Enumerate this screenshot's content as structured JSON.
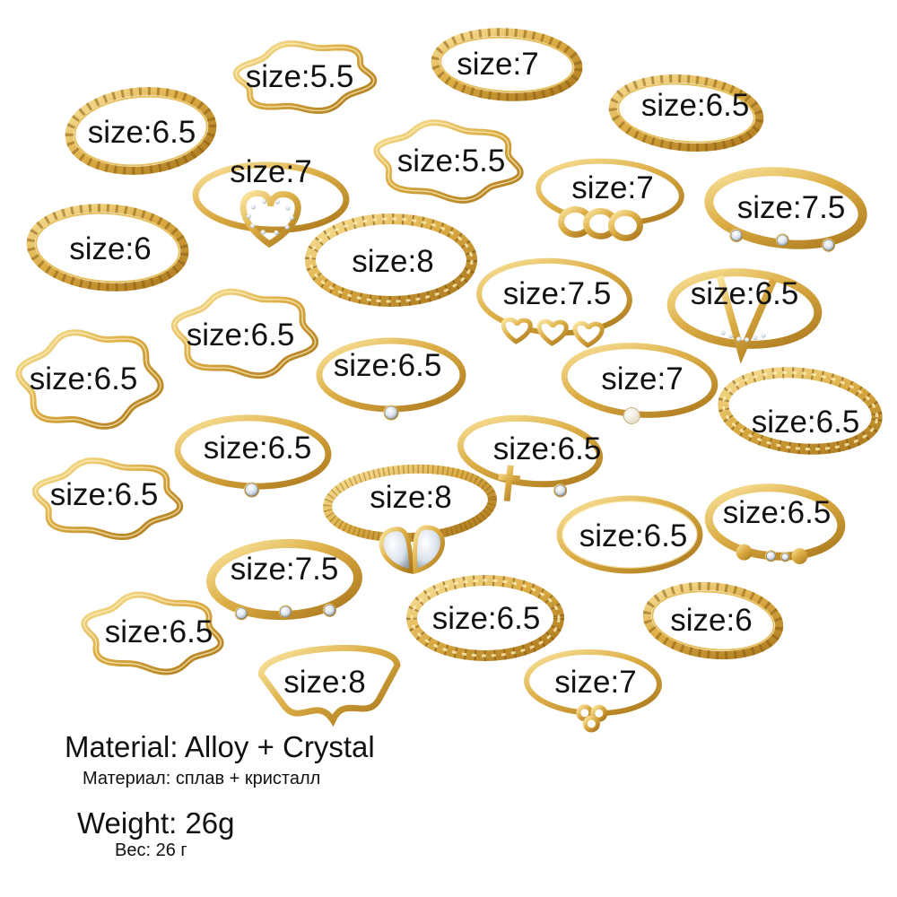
{
  "colors": {
    "gold_light": "#f6dc8a",
    "gold_mid": "#d9a73a",
    "gold_dark": "#9a6b14",
    "crystal": "#e8eef5",
    "pearl": "#fbf6ea",
    "background": "#ffffff"
  },
  "rings": [
    {
      "style": "wave",
      "size_label": "size:5.5"
    },
    {
      "style": "twist",
      "size_label": "size:7"
    },
    {
      "style": "twist",
      "size_label": "size:6.5"
    },
    {
      "style": "twist",
      "size_label": "size:6.5"
    },
    {
      "style": "heart",
      "size_label": "size:7"
    },
    {
      "style": "wave",
      "size_label": "size:5.5"
    },
    {
      "style": "links",
      "size_label": "size:7"
    },
    {
      "style": "stones",
      "size_label": "size:7.5"
    },
    {
      "style": "twist",
      "size_label": "size:6"
    },
    {
      "style": "braid",
      "size_label": "size:8"
    },
    {
      "style": "hearts",
      "size_label": "size:7.5"
    },
    {
      "style": "vshape",
      "size_label": "size:6.5"
    },
    {
      "style": "wave",
      "size_label": "size:6.5"
    },
    {
      "style": "wave",
      "size_label": "size:6.5"
    },
    {
      "style": "solitaire",
      "size_label": "size:6.5"
    },
    {
      "style": "pearl",
      "size_label": "size:7"
    },
    {
      "style": "braid",
      "size_label": "size:6.5"
    },
    {
      "style": "solitaire",
      "size_label": "size:6.5"
    },
    {
      "style": "cross",
      "size_label": "size:6.5"
    },
    {
      "style": "wave",
      "size_label": "size:6.5"
    },
    {
      "style": "teardrop",
      "size_label": "size:8"
    },
    {
      "style": "plain",
      "size_label": "size:6.5"
    },
    {
      "style": "hearts2",
      "size_label": "size:6.5"
    },
    {
      "style": "stones",
      "size_label": "size:7.5"
    },
    {
      "style": "wave",
      "size_label": "size:6.5"
    },
    {
      "style": "braid",
      "size_label": "size:6.5"
    },
    {
      "style": "twist",
      "size_label": "size:6"
    },
    {
      "style": "vwave",
      "size_label": "size:8"
    },
    {
      "style": "trefoil",
      "size_label": "size:7"
    }
  ],
  "caption": {
    "material_en": "Material: Alloy + Crystal",
    "material_ru": "Материал: сплав + кристалл",
    "weight_en": "Weight: 26g",
    "weight_ru": "Вес: 26  г"
  }
}
